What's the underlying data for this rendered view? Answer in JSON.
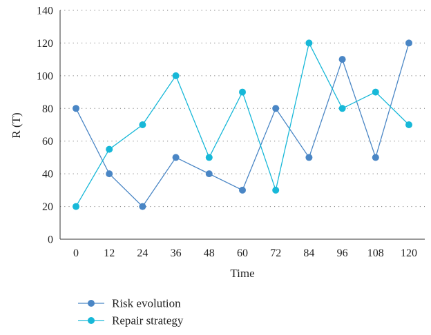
{
  "chart_data": {
    "type": "line",
    "x": [
      0,
      12,
      24,
      36,
      48,
      60,
      72,
      84,
      96,
      108,
      120
    ],
    "x_tick_labels": [
      "0",
      "12",
      "24",
      "36",
      "48",
      "60",
      "72",
      "84",
      "96",
      "108",
      "120"
    ],
    "y_tick_labels": [
      "0",
      "20",
      "40",
      "60",
      "80",
      "100",
      "120",
      "140"
    ],
    "y_ticks": [
      0,
      20,
      40,
      60,
      80,
      100,
      120,
      140
    ],
    "ylim": [
      0,
      140
    ],
    "xlabel": "Time",
    "ylabel": "R (T)",
    "grid": "horizontal dotted",
    "legend_position": "bottom-left",
    "series": [
      {
        "name": "Risk evolution",
        "color": "#4a86c5",
        "values": [
          80,
          40,
          20,
          50,
          40,
          30,
          80,
          50,
          110,
          50,
          120
        ]
      },
      {
        "name": "Repair strategy",
        "color": "#17b8d8",
        "values": [
          20,
          55,
          70,
          100,
          50,
          90,
          30,
          120,
          80,
          90,
          70
        ]
      }
    ]
  }
}
